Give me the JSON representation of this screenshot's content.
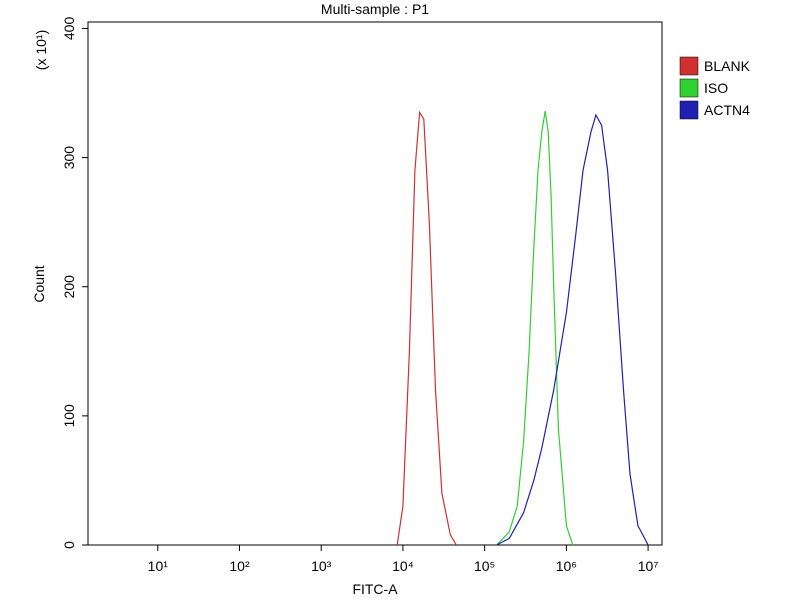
{
  "chart_data": {
    "type": "line",
    "title": "Multi-sample : P1",
    "xlabel": "FITC-A",
    "ylabel": "Count",
    "ylabel_multiplier": "(x 10¹)",
    "xscale": "log",
    "xlim": [
      1.4,
      14800000
    ],
    "ylim": [
      0,
      405
    ],
    "xticks": [
      {
        "value": 10,
        "label": "10¹"
      },
      {
        "value": 100,
        "label": "10²"
      },
      {
        "value": 1000,
        "label": "10³"
      },
      {
        "value": 10000,
        "label": "10⁴"
      },
      {
        "value": 100000,
        "label": "10⁵"
      },
      {
        "value": 1000000,
        "label": "10⁶"
      },
      {
        "value": 10000000,
        "label": "10⁷"
      }
    ],
    "yticks": [
      0,
      100,
      200,
      300,
      400
    ],
    "legend": "right",
    "series": [
      {
        "name": "BLANK",
        "color": "#d03030",
        "x": [
          8500,
          10000,
          12000,
          14000,
          16000,
          18000,
          21000,
          25000,
          30000,
          38000,
          45000
        ],
        "values": [
          0,
          30,
          150,
          290,
          335,
          330,
          250,
          120,
          40,
          8,
          0
        ]
      },
      {
        "name": "ISO",
        "color": "#30d030",
        "x": [
          140000,
          200000,
          250000,
          300000,
          350000,
          400000,
          450000,
          500000,
          550000,
          600000,
          650000,
          700000,
          800000,
          1000000,
          1200000
        ],
        "values": [
          0,
          10,
          30,
          80,
          150,
          230,
          290,
          320,
          336,
          320,
          270,
          200,
          90,
          15,
          0
        ]
      },
      {
        "name": "ACTN4",
        "color": "#2020b0",
        "x": [
          140000,
          200000,
          300000,
          400000,
          500000,
          700000,
          1000000,
          1300000,
          1600000,
          2000000,
          2300000,
          2700000,
          3200000,
          4000000,
          5000000,
          6000000,
          7500000,
          10000000
        ],
        "values": [
          0,
          5,
          25,
          50,
          75,
          120,
          180,
          240,
          290,
          320,
          333,
          325,
          290,
          210,
          120,
          55,
          15,
          0
        ]
      }
    ]
  }
}
